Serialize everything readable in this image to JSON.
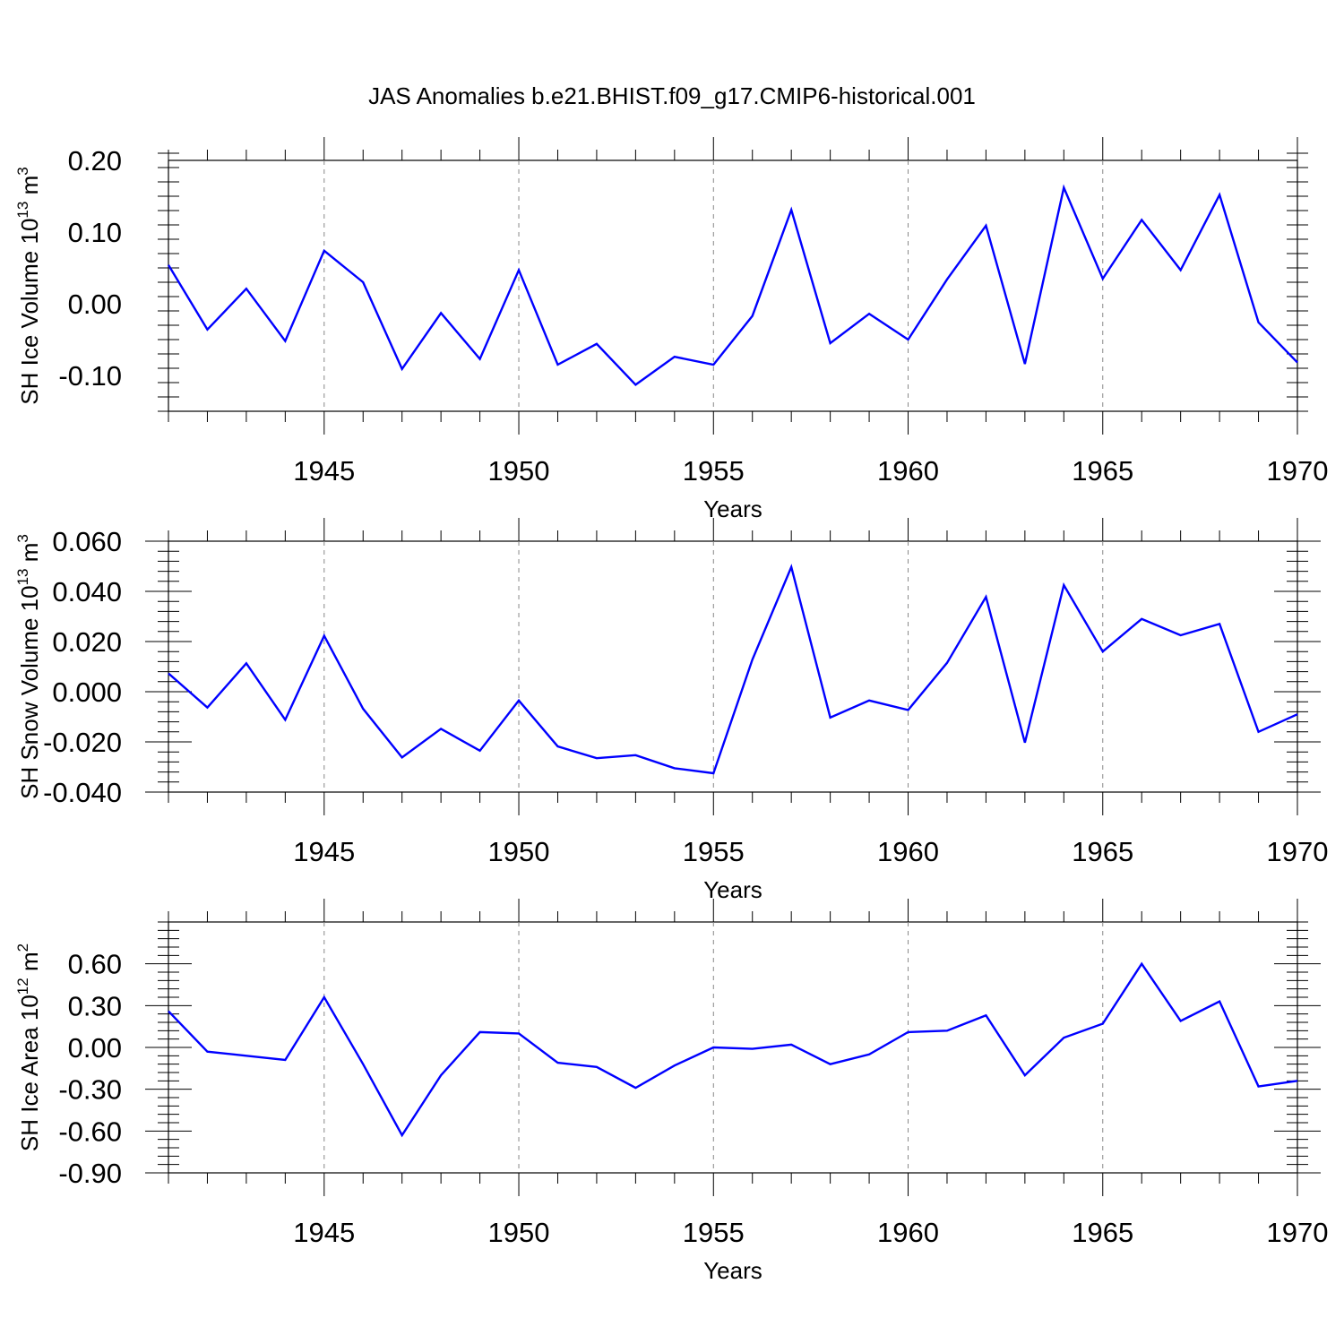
{
  "chart_data": {
    "title": "JAS Anomalies b.e21.BHIST.f09_g17.CMIP6-historical.001",
    "x": [
      1941,
      1942,
      1943,
      1944,
      1945,
      1946,
      1947,
      1948,
      1949,
      1950,
      1951,
      1952,
      1953,
      1954,
      1955,
      1956,
      1957,
      1958,
      1959,
      1960,
      1961,
      1962,
      1963,
      1964,
      1965,
      1966,
      1967,
      1968,
      1969,
      1970
    ],
    "xlim": [
      1941,
      1970
    ],
    "x_ticks": [
      1945,
      1950,
      1955,
      1960,
      1965,
      1970
    ],
    "x_tick_labels": [
      "1945",
      "1950",
      "1955",
      "1960",
      "1965",
      "1970"
    ],
    "line_color": "#0000ff",
    "panels": [
      {
        "type": "line",
        "ylabel": "SH Ice Volume 10",
        "ylabel_exp": "13",
        "ylabel_unit": " m",
        "ylabel_unit_exp": "3",
        "xlabel": "",
        "ylim": [
          -0.15,
          0.2
        ],
        "y_ticks": [
          -0.1,
          0.0,
          0.1,
          0.2
        ],
        "y_tick_labels": [
          "-0.10",
          "0.00",
          "0.10",
          "0.20"
        ],
        "values": [
          0.054,
          -0.036,
          0.021,
          -0.052,
          0.074,
          0.03,
          -0.091,
          -0.013,
          -0.077,
          0.047,
          -0.085,
          -0.056,
          -0.113,
          -0.074,
          -0.085,
          -0.017,
          0.131,
          -0.055,
          -0.014,
          -0.05,
          0.034,
          0.109,
          -0.084,
          0.162,
          0.035,
          0.117,
          0.047,
          0.152,
          -0.026,
          -0.082
        ]
      },
      {
        "type": "line",
        "ylabel": "SH Snow Volume 10",
        "ylabel_exp": "13",
        "ylabel_unit": " m",
        "ylabel_unit_exp": "3",
        "xlabel": "Years",
        "ylim": [
          -0.04,
          0.06
        ],
        "y_ticks": [
          -0.04,
          -0.02,
          0.0,
          0.02,
          0.04,
          0.06
        ],
        "y_tick_labels": [
          "-0.040",
          "-0.020",
          "0.000",
          "0.020",
          "0.040",
          "0.060"
        ],
        "values": [
          0.0073,
          -0.0063,
          0.0113,
          -0.0112,
          0.0223,
          -0.0068,
          -0.0262,
          -0.0148,
          -0.0235,
          -0.0035,
          -0.0218,
          -0.0265,
          -0.0253,
          -0.0305,
          -0.0325,
          0.0128,
          0.0497,
          -0.0103,
          -0.0035,
          -0.0073,
          0.0115,
          0.0378,
          -0.0203,
          0.0425,
          0.016,
          0.029,
          0.0225,
          0.027,
          -0.016,
          -0.009
        ]
      },
      {
        "type": "line",
        "ylabel": "SH Ice Area 10",
        "ylabel_exp": "12",
        "ylabel_unit": " m",
        "ylabel_unit_exp": "2",
        "xlabel": "Years",
        "ylim": [
          -0.9,
          0.9
        ],
        "y_ticks": [
          -0.9,
          -0.6,
          -0.3,
          0.0,
          0.3,
          0.6
        ],
        "y_tick_labels": [
          "-0.90",
          "-0.60",
          "-0.30",
          "0.00",
          "0.30",
          "0.60"
        ],
        "values": [
          0.26,
          -0.03,
          -0.06,
          -0.09,
          0.36,
          -0.12,
          -0.63,
          -0.2,
          0.11,
          0.1,
          -0.11,
          -0.14,
          -0.29,
          -0.13,
          0.0,
          -0.01,
          0.02,
          -0.12,
          -0.05,
          0.11,
          0.12,
          0.23,
          -0.2,
          0.07,
          0.17,
          0.6,
          0.19,
          0.33,
          -0.28,
          -0.24
        ]
      }
    ]
  }
}
